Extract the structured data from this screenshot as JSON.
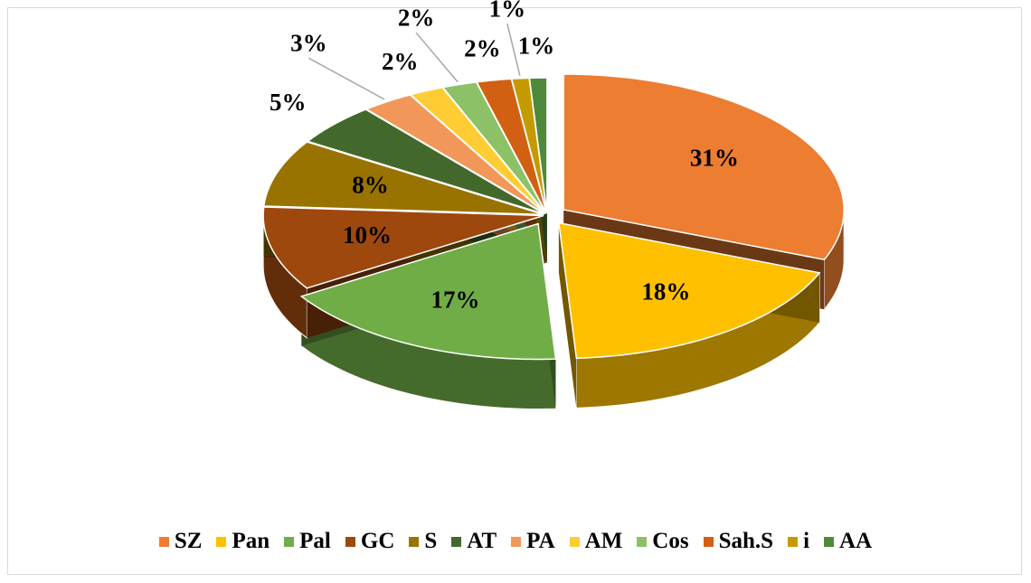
{
  "chart_data": {
    "type": "pie",
    "categories": [
      "SZ",
      "Pan",
      "Pal",
      "GC",
      "S",
      "AT",
      "PA",
      "AM",
      "Cos",
      "Sah.S",
      "i",
      "AA"
    ],
    "values": [
      31,
      18,
      17,
      10,
      8,
      5,
      3,
      2,
      2,
      2,
      1,
      1
    ],
    "value_labels": [
      "31%",
      "18%",
      "17%",
      "10%",
      "8%",
      "5%",
      "3%",
      "2%",
      "2%",
      "2%",
      "1%",
      "1%"
    ],
    "colors": [
      "#ed7d31",
      "#ffc000",
      "#70ad47",
      "#9e480e",
      "#997300",
      "#43682b",
      "#f1975a",
      "#ffcd33",
      "#8cc168",
      "#d26012",
      "#c59a00",
      "#4f8a3a"
    ],
    "legend": "bottom"
  }
}
